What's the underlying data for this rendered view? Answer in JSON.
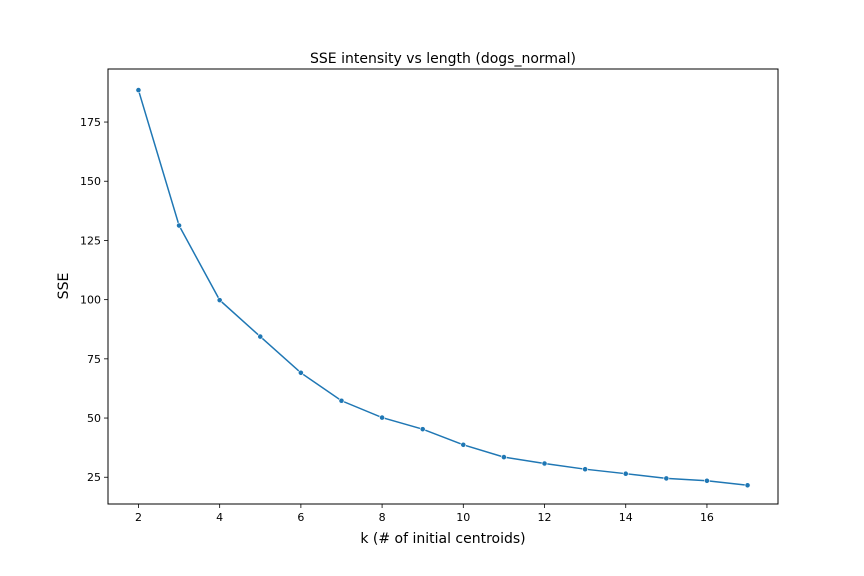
{
  "chart_data": {
    "type": "line",
    "title": "SSE intensity vs length (dogs_normal)",
    "xlabel": "k (# of initial centroids)",
    "ylabel": "SSE",
    "x": [
      2,
      3,
      4,
      5,
      6,
      7,
      8,
      9,
      10,
      11,
      12,
      13,
      14,
      15,
      16,
      17
    ],
    "series": [
      {
        "values": [
          188.5,
          131.3,
          99.8,
          84.4,
          69.1,
          57.3,
          50.2,
          45.3,
          38.7,
          33.5,
          30.8,
          28.4,
          26.5,
          24.5,
          23.5,
          21.6
        ],
        "color": "#1f77b4"
      }
    ],
    "xlim": [
      1.25,
      17.75
    ],
    "ylim": [
      13.7,
      197.4
    ],
    "xticks": [
      2,
      4,
      6,
      8,
      10,
      12,
      14,
      16
    ],
    "yticks": [
      25,
      50,
      75,
      100,
      125,
      150,
      175
    ],
    "xtick_labels": [
      "2",
      "4",
      "6",
      "8",
      "10",
      "12",
      "14",
      "16"
    ],
    "ytick_labels": [
      "25",
      "50",
      "75",
      "100",
      "125",
      "150",
      "175"
    ],
    "grid": false,
    "marker": "circle"
  }
}
